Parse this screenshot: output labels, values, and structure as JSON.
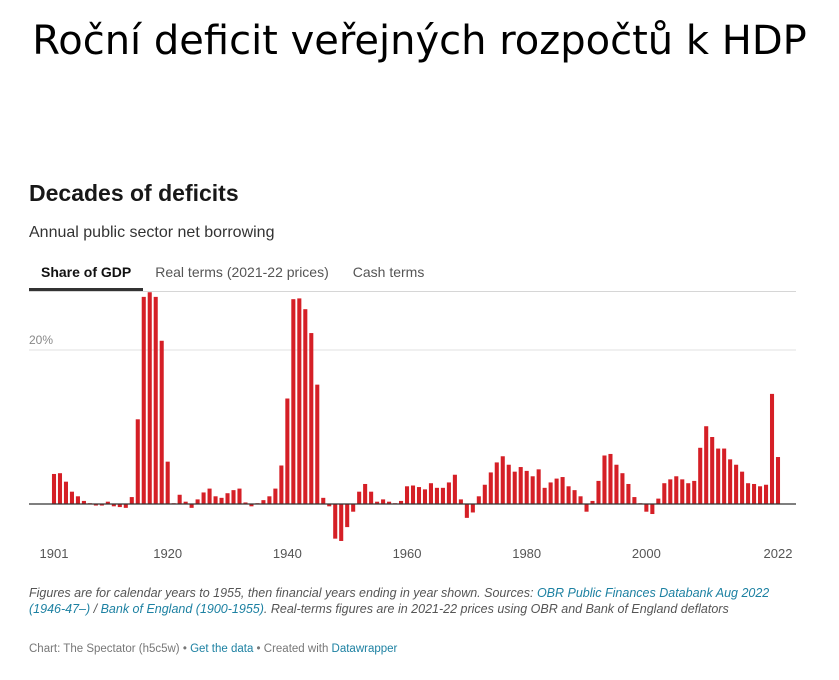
{
  "slide": {
    "title": "Roční deficit veřejných rozpočtů k HDP"
  },
  "chart_header": {
    "title": "Decades of deficits",
    "subtitle": "Annual public sector net borrowing"
  },
  "tabs": [
    {
      "label": "Share of GDP",
      "active": true
    },
    {
      "label": "Real terms (2021-22 prices)",
      "active": false
    },
    {
      "label": "Cash terms",
      "active": false
    }
  ],
  "footnote": {
    "text_1": "Figures are for calendar years to 1955, then financial years ending in year shown. Sources: ",
    "link_1": "OBR Public Finances Databank Aug 2022 (1946-47–)",
    "sep": " / ",
    "link_2": "Bank of England (1900-1955)",
    "text_2": ". Real-terms figures are in 2021-22 prices using OBR and Bank of England deflators"
  },
  "credit": {
    "chart_by": "Chart: The Spectator (h5c5w)",
    "dot_1": " • ",
    "get_data": "Get the data",
    "dot_2": " • Created with ",
    "datawrapper": "Datawrapper"
  },
  "colors": {
    "bar": "#d51f26",
    "link": "#1d81a2",
    "axis": "#333333",
    "grid": "#e2e2e2"
  },
  "chart_data": {
    "type": "bar",
    "x_tick_labels": [
      "1901",
      "1920",
      "1940",
      "1960",
      "1980",
      "2000",
      "2022"
    ],
    "y_tick_labels": [
      "20%"
    ],
    "y_unit": "% of GDP",
    "ylim": [
      -5,
      29
    ],
    "grid": true,
    "x": [
      1901,
      1902,
      1903,
      1904,
      1905,
      1906,
      1907,
      1908,
      1909,
      1910,
      1911,
      1912,
      1913,
      1914,
      1915,
      1916,
      1917,
      1918,
      1919,
      1920,
      1921,
      1922,
      1923,
      1924,
      1925,
      1926,
      1927,
      1928,
      1929,
      1930,
      1931,
      1932,
      1933,
      1934,
      1935,
      1936,
      1937,
      1938,
      1939,
      1940,
      1941,
      1942,
      1943,
      1944,
      1945,
      1946,
      1947,
      1948,
      1949,
      1950,
      1951,
      1952,
      1953,
      1954,
      1955,
      1956,
      1957,
      1958,
      1959,
      1960,
      1961,
      1962,
      1963,
      1964,
      1965,
      1966,
      1967,
      1968,
      1969,
      1970,
      1971,
      1972,
      1973,
      1974,
      1975,
      1976,
      1977,
      1978,
      1979,
      1980,
      1981,
      1982,
      1983,
      1984,
      1985,
      1986,
      1987,
      1988,
      1989,
      1990,
      1991,
      1992,
      1993,
      1994,
      1995,
      1996,
      1997,
      1998,
      1999,
      2000,
      2001,
      2002,
      2003,
      2004,
      2005,
      2006,
      2007,
      2008,
      2009,
      2010,
      2011,
      2012,
      2013,
      2014,
      2015,
      2016,
      2017,
      2018,
      2019,
      2020,
      2021,
      2022
    ],
    "values": [
      3.9,
      4.0,
      2.9,
      1.6,
      1.0,
      0.4,
      0.1,
      -0.2,
      -0.2,
      0.3,
      -0.3,
      -0.4,
      -0.5,
      0.9,
      11.0,
      26.9,
      27.5,
      26.9,
      21.2,
      5.5,
      0.1,
      1.2,
      0.3,
      -0.5,
      0.6,
      1.5,
      2.0,
      1.0,
      0.8,
      1.4,
      1.8,
      2.0,
      0.2,
      -0.3,
      0.1,
      0.5,
      1.0,
      2.0,
      5.0,
      13.7,
      26.6,
      26.7,
      25.3,
      22.2,
      15.5,
      0.8,
      -0.3,
      -4.5,
      -4.8,
      -3.0,
      -1.0,
      1.6,
      2.6,
      1.6,
      0.3,
      0.6,
      0.3,
      0.1,
      0.4,
      2.3,
      2.4,
      2.2,
      1.9,
      2.7,
      2.1,
      2.1,
      2.8,
      3.8,
      0.6,
      -1.8,
      -1.1,
      1.0,
      2.5,
      4.1,
      5.4,
      6.2,
      5.1,
      4.2,
      4.8,
      4.3,
      3.6,
      4.5,
      2.1,
      2.8,
      3.3,
      3.5,
      2.3,
      1.8,
      1.0,
      -1.0,
      0.4,
      3.0,
      6.3,
      6.5,
      5.1,
      4.0,
      2.6,
      0.9,
      0.1,
      -1.0,
      -1.3,
      0.7,
      2.7,
      3.2,
      3.6,
      3.2,
      2.7,
      3.0,
      7.3,
      10.1,
      8.7,
      7.2,
      7.2,
      5.8,
      5.1,
      4.2,
      2.7,
      2.6,
      2.3,
      2.5,
      14.3,
      6.1
    ]
  }
}
